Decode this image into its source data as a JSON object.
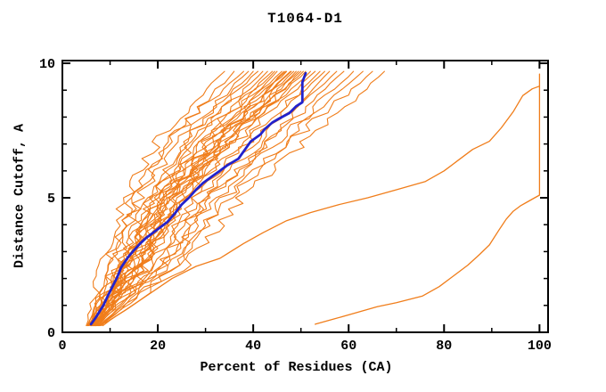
{
  "chart_data": {
    "type": "line",
    "title": "T1064-D1",
    "xlabel": "Percent of Residues (CA)",
    "ylabel": "Distance Cutoff, A",
    "xlim": [
      0,
      101.8
    ],
    "ylim": [
      0,
      10.1
    ],
    "grid": false,
    "legend": "none",
    "x_axis": {
      "major_ticks": [
        0,
        20,
        40,
        60,
        80,
        100
      ],
      "major_labels": [
        "0",
        "20",
        "40",
        "60",
        "80",
        "100"
      ],
      "minor_ticks": [
        10,
        30,
        50,
        70,
        90
      ]
    },
    "y_axis": {
      "major_ticks": [
        0,
        5,
        10
      ],
      "major_labels": [
        "0",
        "5",
        "10"
      ],
      "minor_ticks": [
        1,
        2,
        3,
        4,
        6,
        7,
        8,
        9
      ]
    },
    "colors": {
      "model_curves": "#f07d1a",
      "median_curve": "#2222cc",
      "outlier_curves": "#f07d1a",
      "axis": "#000000",
      "background": "#ffffff"
    },
    "series": {
      "model_curves_bundle": {
        "y_levels": [
          0.25,
          2.5,
          5,
          7.5,
          9.7
        ],
        "curves_x": [
          [
            5.0,
            9.0,
            14.0,
            22.0,
            34
          ],
          [
            5.5,
            9.5,
            15.0,
            24.0,
            36
          ],
          [
            6.0,
            10.5,
            15.5,
            25.0,
            38
          ],
          [
            5.2,
            11.0,
            16.0,
            26.0,
            39
          ],
          [
            6.5,
            11.5,
            17.0,
            27.0,
            40
          ],
          [
            5.8,
            12.0,
            18.0,
            28.0,
            41
          ],
          [
            6.2,
            12.5,
            18.5,
            29.0,
            42
          ],
          [
            7.0,
            13.0,
            19.0,
            30.0,
            43
          ],
          [
            5.4,
            12.0,
            19.5,
            31.0,
            44
          ],
          [
            6.8,
            13.5,
            20.0,
            31.5,
            44.5
          ],
          [
            5.6,
            13.0,
            20.5,
            32.0,
            45
          ],
          [
            7.2,
            14.0,
            21.0,
            33.0,
            46
          ],
          [
            6.1,
            14.5,
            21.5,
            33.5,
            46.5
          ],
          [
            6.0,
            13.8,
            21.8,
            33.8,
            46.8
          ],
          [
            6.9,
            15.0,
            22.0,
            34.0,
            47
          ],
          [
            5.3,
            14.0,
            22.5,
            35.0,
            48
          ],
          [
            7.5,
            15.5,
            23.0,
            35.5,
            48.5
          ],
          [
            6.4,
            16.0,
            23.5,
            36.0,
            49
          ],
          [
            6.9,
            14.8,
            22.8,
            34.8,
            47.8
          ],
          [
            7.1,
            16.5,
            24.0,
            37.0,
            50
          ],
          [
            5.9,
            15.5,
            24.5,
            37.5,
            50.5
          ],
          [
            6.6,
            17.0,
            25.0,
            38.0,
            51
          ],
          [
            7.0,
            16.2,
            24.2,
            36.5,
            49.5
          ],
          [
            7.3,
            17.5,
            25.5,
            39.0,
            52
          ],
          [
            6.3,
            18.0,
            26.0,
            40.0,
            53
          ],
          [
            7.6,
            18.5,
            27.0,
            41.0,
            54
          ],
          [
            6.7,
            19.0,
            28.0,
            42.0,
            55
          ],
          [
            7.8,
            20.0,
            29.0,
            43.0,
            56
          ],
          [
            6.5,
            20.5,
            30.0,
            44.5,
            57.5
          ],
          [
            7.4,
            21.0,
            31.0,
            46.0,
            59
          ],
          [
            8.0,
            22.0,
            32.0,
            47.5,
            61
          ],
          [
            7.7,
            23.0,
            33.5,
            49.0,
            63
          ],
          [
            8.2,
            24.0,
            35.0,
            51.0,
            65
          ],
          [
            8.5,
            25.5,
            37.0,
            53.5,
            67.5
          ]
        ]
      },
      "median_curve": {
        "points": [
          [
            6,
            0.3
          ],
          [
            7,
            0.55
          ],
          [
            8.6,
            1.0
          ],
          [
            9.5,
            1.35
          ],
          [
            10.5,
            1.7
          ],
          [
            11.5,
            2.05
          ],
          [
            12.3,
            2.4
          ],
          [
            13.8,
            2.8
          ],
          [
            15,
            3.05
          ],
          [
            16.3,
            3.3
          ],
          [
            17.5,
            3.5
          ],
          [
            19,
            3.7
          ],
          [
            20.5,
            3.9
          ],
          [
            22,
            4.1
          ],
          [
            23.5,
            4.4
          ],
          [
            25,
            4.75
          ],
          [
            26.5,
            5.0
          ],
          [
            28,
            5.3
          ],
          [
            29.5,
            5.55
          ],
          [
            31.4,
            5.8
          ],
          [
            33,
            6.0
          ],
          [
            34.5,
            6.2
          ],
          [
            36.9,
            6.45
          ],
          [
            38.3,
            6.8
          ],
          [
            39.5,
            7.1
          ],
          [
            41.5,
            7.35
          ],
          [
            42.4,
            7.55
          ],
          [
            44,
            7.8
          ],
          [
            45.5,
            7.95
          ],
          [
            47.6,
            8.15
          ],
          [
            49,
            8.4
          ],
          [
            50.3,
            8.55
          ],
          [
            50.3,
            9.3
          ],
          [
            51,
            9.63
          ]
        ]
      },
      "outlier_curves": [
        {
          "points": [
            [
              9,
              0.35
            ],
            [
              13,
              0.8
            ],
            [
              18,
              1.4
            ],
            [
              23,
              2.0
            ],
            [
              28,
              2.45
            ],
            [
              33,
              2.75
            ],
            [
              38,
              3.3
            ],
            [
              42,
              3.7
            ],
            [
              47,
              4.15
            ],
            [
              52,
              4.45
            ],
            [
              58,
              4.75
            ],
            [
              64,
              5.0
            ],
            [
              70,
              5.3
            ],
            [
              76,
              5.6
            ],
            [
              80,
              6.0
            ],
            [
              83,
              6.4
            ],
            [
              86,
              6.8
            ],
            [
              89.5,
              7.1
            ],
            [
              92,
              7.6
            ],
            [
              94.5,
              8.2
            ],
            [
              96.5,
              8.8
            ],
            [
              98.5,
              9.05
            ],
            [
              100,
              9.15
            ]
          ]
        },
        {
          "points": [
            [
              53,
              0.3
            ],
            [
              57,
              0.5
            ],
            [
              61,
              0.7
            ],
            [
              66,
              0.95
            ],
            [
              70,
              1.1
            ],
            [
              75.5,
              1.35
            ],
            [
              79,
              1.7
            ],
            [
              82,
              2.1
            ],
            [
              85,
              2.5
            ],
            [
              87.5,
              2.9
            ],
            [
              89.5,
              3.25
            ],
            [
              91.5,
              3.8
            ],
            [
              93,
              4.2
            ],
            [
              94.5,
              4.5
            ],
            [
              96,
              4.7
            ],
            [
              97.5,
              4.85
            ],
            [
              99,
              5.0
            ],
            [
              100,
              5.1
            ],
            [
              100,
              9.6
            ]
          ]
        }
      ]
    }
  }
}
